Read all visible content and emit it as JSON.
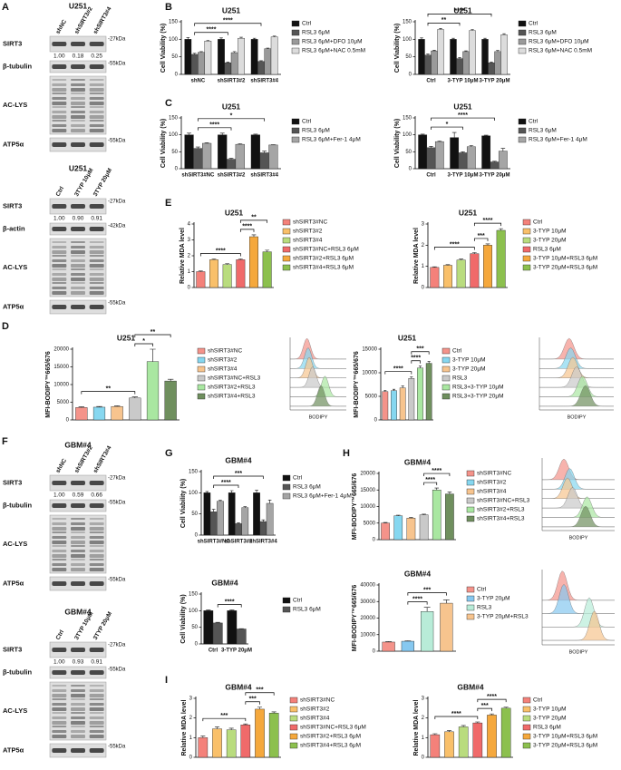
{
  "panel_labels": [
    "A",
    "B",
    "C",
    "D",
    "E",
    "F",
    "G",
    "H",
    "I"
  ],
  "blots": [
    {
      "title": "U251",
      "lanes": [
        "shNC",
        "shSIRT3#2",
        "shSIRT3#4"
      ],
      "rows": [
        {
          "protein": "SIRT3",
          "marker": "-27kDa",
          "quant": [
            "1.00",
            "0.18",
            "0.25"
          ]
        },
        {
          "protein": "β-tubulin",
          "marker": "-55kDa"
        },
        {
          "protein": "AC-LYS"
        },
        {
          "protein": "ATP5α",
          "marker": "-55kDa"
        }
      ]
    },
    {
      "title": "U251",
      "lanes": [
        "Ctrl",
        "3TYP 10μM",
        "3TYP 20μM"
      ],
      "rows": [
        {
          "protein": "SIRT3",
          "marker": "-27kDa",
          "quant": [
            "1.00",
            "0.90",
            "0.91"
          ]
        },
        {
          "protein": "β-actin",
          "marker": "-42kDa"
        },
        {
          "protein": "AC-LYS"
        },
        {
          "protein": "ATP5α",
          "marker": "-55kDa"
        }
      ]
    },
    {
      "title": "GBM#4",
      "lanes": [
        "shNC",
        "shSIRT3#2",
        "shSIRT3#4"
      ],
      "rows": [
        {
          "protein": "SIRT3",
          "marker": "-27kDa",
          "quant": [
            "1.00",
            "0.59",
            "0.66"
          ]
        },
        {
          "protein": "β-tubulin",
          "marker": "-55kDa"
        },
        {
          "protein": "AC-LYS"
        },
        {
          "protein": "ATP5α",
          "marker": "-55kDa"
        }
      ]
    },
    {
      "title": "GBM#4",
      "lanes": [
        "Ctrl",
        "3TYP 10μM",
        "3TYP 20μM"
      ],
      "rows": [
        {
          "protein": "SIRT3",
          "marker": "-27kDa",
          "quant": [
            "1.00",
            "0.93",
            "0.91"
          ]
        },
        {
          "protein": "β-tubulin",
          "marker": "-55kDa"
        },
        {
          "protein": "AC-LYS"
        },
        {
          "protein": "ATP5α",
          "marker": "-55kDa"
        }
      ]
    }
  ],
  "flow_histograms": [
    {
      "xlabel": "BODIPY"
    },
    {
      "xlabel": "BODIPY"
    },
    {
      "xlabel": "BODIPY"
    },
    {
      "xlabel": "BODIPY"
    }
  ],
  "chart_data": [
    {
      "type": "bar",
      "title": "U251",
      "ylabel": "Cell Viability (%)",
      "categories": [
        "shNC",
        "shSIRT3#2",
        "shSIRT3#4"
      ],
      "series": [
        {
          "name": "Ctrl",
          "color": "#111111",
          "values": [
            100,
            100,
            100
          ],
          "errors": [
            5,
            4,
            3
          ]
        },
        {
          "name": "RSL3 6μM",
          "color": "#555555",
          "values": [
            57,
            33,
            37
          ],
          "errors": [
            3,
            2,
            2
          ]
        },
        {
          "name": "RSL3 6μM+DFO 10μM",
          "color": "#9a9a9a",
          "values": [
            63,
            62,
            73
          ],
          "errors": [
            2,
            3,
            2
          ]
        },
        {
          "name": "RSL3 6μM+NAC 0.5mM",
          "color": "#dcdcdc",
          "values": [
            95,
            103,
            107
          ],
          "errors": [
            2,
            3,
            2
          ]
        }
      ],
      "ylim": [
        0,
        150
      ],
      "yticks": [
        0,
        50,
        100,
        150
      ],
      "significance": [
        {
          "label": "****",
          "bars": [
            1,
            5
          ]
        },
        {
          "label": "****",
          "bars": [
            1,
            9
          ]
        }
      ]
    },
    {
      "type": "bar",
      "title": "U251",
      "ylabel": "Cell Viability (%)",
      "categories": [
        "Ctrl",
        "3-TYP 10μM",
        "3-TYP 20μM"
      ],
      "series": [
        {
          "name": "Ctrl",
          "color": "#111111",
          "values": [
            100,
            100,
            100
          ],
          "errors": [
            4,
            3,
            3
          ]
        },
        {
          "name": "RSL3 6μM",
          "color": "#555555",
          "values": [
            55,
            45,
            33
          ],
          "errors": [
            3,
            3,
            2
          ]
        },
        {
          "name": "RSL3 6μM+DFO 10μM",
          "color": "#9a9a9a",
          "values": [
            67,
            65,
            65
          ],
          "errors": [
            2,
            2,
            3
          ]
        },
        {
          "name": "RSL3 6μM+NAC 0.5mM",
          "color": "#dcdcdc",
          "values": [
            128,
            125,
            113
          ],
          "errors": [
            3,
            3,
            3
          ]
        }
      ],
      "ylim": [
        0,
        150
      ],
      "yticks": [
        0,
        50,
        100,
        150
      ],
      "significance": [
        {
          "label": "**",
          "bars": [
            1,
            5
          ]
        },
        {
          "label": "****",
          "bars": [
            1,
            9
          ]
        }
      ]
    },
    {
      "type": "bar",
      "title": "U251",
      "ylabel": "Cell Viability (%)",
      "categories": [
        "shSIRT3#NC",
        "shSIRT3#2",
        "shSIRT3#4"
      ],
      "series": [
        {
          "name": "Ctrl",
          "color": "#111111",
          "values": [
            100,
            100,
            100
          ],
          "errors": [
            5,
            5,
            2
          ]
        },
        {
          "name": "RSL3 6μM",
          "color": "#555555",
          "values": [
            60,
            28,
            47
          ],
          "errors": [
            4,
            3,
            5
          ]
        },
        {
          "name": "RSL3 6μM+Fer-1 4μM",
          "color": "#a5a5a5",
          "values": [
            75,
            72,
            70
          ],
          "errors": [
            2,
            2,
            1
          ]
        }
      ],
      "ylim": [
        0,
        150
      ],
      "yticks": [
        0,
        50,
        100,
        150
      ],
      "significance": [
        {
          "label": "****",
          "bars": [
            1,
            4
          ]
        },
        {
          "label": "*",
          "bars": [
            1,
            7
          ]
        }
      ]
    },
    {
      "type": "bar",
      "title": "U251",
      "ylabel": "Cell Viability (%)",
      "categories": [
        "Ctrl",
        "3-TYP 10μM",
        "3-TYP 20μM"
      ],
      "series": [
        {
          "name": "Ctrl",
          "color": "#111111",
          "values": [
            100,
            92,
            97
          ],
          "errors": [
            2,
            15,
            2
          ]
        },
        {
          "name": "RSL3 6μM",
          "color": "#555555",
          "values": [
            62,
            47,
            20
          ],
          "errors": [
            4,
            3,
            2
          ]
        },
        {
          "name": "RSL3 6μM+Fer-1 4μM",
          "color": "#a5a5a5",
          "values": [
            80,
            65,
            52
          ],
          "errors": [
            2,
            4,
            8
          ]
        }
      ],
      "ylim": [
        0,
        150
      ],
      "yticks": [
        0,
        50,
        100,
        150
      ],
      "significance": [
        {
          "label": "*",
          "bars": [
            1,
            4
          ]
        },
        {
          "label": "****",
          "bars": [
            1,
            7
          ]
        }
      ]
    },
    {
      "type": "bar",
      "title": "U251",
      "ylabel": "Relative MDA level",
      "category_labels": "legend",
      "categories": [
        "shSIRT3#NC",
        "shSIRT3#2",
        "shSIRT3#4",
        "shSIRT3#NC+RSL3 6μM",
        "shSIRT3#2+RSL3 6μM",
        "shSIRT3#4+RSL3 6μM"
      ],
      "colors": [
        "#f4817a",
        "#f9c06a",
        "#b9dc7e",
        "#f06a6a",
        "#f5a83c",
        "#8cc04e"
      ],
      "values": [
        1.0,
        1.75,
        1.45,
        1.75,
        3.2,
        2.25
      ],
      "errors": [
        0.04,
        0.05,
        0.05,
        0.05,
        0.12,
        0.1
      ],
      "ylim": [
        0,
        4
      ],
      "yticks": [
        0,
        1,
        2,
        3,
        4
      ],
      "significance": [
        {
          "label": "****",
          "bars": [
            3,
            4
          ]
        },
        {
          "label": "**",
          "bars": [
            3,
            5
          ]
        },
        {
          "label": "****",
          "bars": [
            0,
            3
          ]
        }
      ]
    },
    {
      "type": "bar",
      "title": "U251",
      "ylabel": "Relative MDA level",
      "category_labels": "legend",
      "categories": [
        "Ctrl",
        "3-TYP 10μM",
        "3-TYP 20μM",
        "RSL3 6μM",
        "3-TYP 10μM+RSL3 6μM",
        "3-TYP 20μM+RSL3 6μM"
      ],
      "colors": [
        "#f4817a",
        "#f9c06a",
        "#b9dc7e",
        "#f06a6a",
        "#f5a83c",
        "#8cc04e"
      ],
      "values": [
        0.95,
        1.05,
        1.3,
        1.6,
        2.0,
        2.7
      ],
      "errors": [
        0.03,
        0.03,
        0.04,
        0.05,
        0.06,
        0.08
      ],
      "ylim": [
        0,
        3
      ],
      "yticks": [
        0,
        1,
        2,
        3
      ],
      "significance": [
        {
          "label": "***",
          "bars": [
            3,
            4
          ]
        },
        {
          "label": "****",
          "bars": [
            3,
            5
          ]
        },
        {
          "label": "****",
          "bars": [
            0,
            3
          ]
        }
      ]
    },
    {
      "type": "bar",
      "title": "U251",
      "ylabel": "MFI-BODIPY™665/676",
      "category_labels": "legend",
      "categories": [
        "shSIRT3#NC",
        "shSIRT3#2",
        "shSIRT3#4",
        "shSIRT3#NC+RSL3",
        "shSIRT3#2+RSL3",
        "shSIRT3#4+RSL3"
      ],
      "colors": [
        "#f4938a",
        "#86d7f0",
        "#f7c48e",
        "#c9c9c9",
        "#a9e7a1",
        "#6f8f5e"
      ],
      "values": [
        3500,
        3600,
        3800,
        6200,
        16500,
        11000
      ],
      "errors": [
        200,
        200,
        200,
        300,
        3500,
        500
      ],
      "ylim": [
        0,
        20000
      ],
      "yticks": [
        0,
        5000,
        10000,
        15000,
        20000
      ],
      "significance": [
        {
          "label": "**",
          "bars": [
            0,
            3
          ]
        },
        {
          "label": "*",
          "bars": [
            3,
            4
          ]
        },
        {
          "label": "**",
          "bars": [
            3,
            5
          ]
        }
      ]
    },
    {
      "type": "bar",
      "title": "U251",
      "ylabel": "MFI-BODIPY™665/676",
      "category_labels": "legend",
      "categories": [
        "Ctrl",
        "3-TYP 10μM",
        "3-TYP 20μM",
        "RSL3",
        "RSL3+3-TYP 10μM",
        "RSL3+3-TYP 20μM"
      ],
      "colors": [
        "#f4938a",
        "#86d7f0",
        "#f7c48e",
        "#c9c9c9",
        "#a9e7a1",
        "#6f8f5e"
      ],
      "values": [
        6000,
        6200,
        6800,
        8800,
        11000,
        12000
      ],
      "errors": [
        300,
        300,
        400,
        300,
        400,
        400
      ],
      "ylim": [
        0,
        15000
      ],
      "yticks": [
        0,
        5000,
        10000,
        15000
      ],
      "significance": [
        {
          "label": "****",
          "bars": [
            0,
            3
          ]
        },
        {
          "label": "****",
          "bars": [
            3,
            4
          ]
        },
        {
          "label": "***",
          "bars": [
            3,
            5
          ]
        }
      ]
    },
    {
      "type": "bar",
      "title": "GBM#4",
      "ylabel": "Cell Viability (%)",
      "categories": [
        "shSIRT3#NC",
        "shSIRT3#2",
        "shSIRT3#4"
      ],
      "series": [
        {
          "name": "Ctrl",
          "color": "#111111",
          "values": [
            100,
            100,
            100
          ],
          "errors": [
            3,
            5,
            6
          ]
        },
        {
          "name": "RSL3 6μM",
          "color": "#555555",
          "values": [
            55,
            27,
            32
          ],
          "errors": [
            6,
            2,
            4
          ]
        },
        {
          "name": "RSL3 6μM+Fer-1 4μM",
          "color": "#a5a5a5",
          "values": [
            80,
            65,
            75
          ],
          "errors": [
            2,
            2,
            8
          ]
        }
      ],
      "ylim": [
        0,
        150
      ],
      "yticks": [
        0,
        50,
        100,
        150
      ],
      "significance": [
        {
          "label": "****",
          "bars": [
            1,
            4
          ]
        },
        {
          "label": "***",
          "bars": [
            1,
            7
          ]
        }
      ]
    },
    {
      "type": "bar",
      "title": "GBM#4",
      "ylabel": "Cell Viability (%)",
      "categories": [
        "Ctrl",
        "3-TYP 20μM"
      ],
      "series": [
        {
          "name": "Ctrl",
          "color": "#111111",
          "values": [
            100,
            100
          ],
          "errors": [
            2,
            2
          ]
        },
        {
          "name": "RSL3 6μM",
          "color": "#555555",
          "values": [
            63,
            45
          ],
          "errors": [
            2,
            1
          ]
        }
      ],
      "ylim": [
        0,
        150
      ],
      "yticks": [
        0,
        50,
        100,
        150
      ],
      "significance": [
        {
          "label": "****",
          "bars": [
            1,
            3
          ]
        }
      ]
    },
    {
      "type": "bar",
      "title": "GBM#4",
      "ylabel": "MFI-BODIPY™665/676",
      "category_labels": "legend",
      "categories": [
        "shSIRT3#NC",
        "shSIRT3#2",
        "shSIRT3#4",
        "shSIRT3#NC+RSL3",
        "shSIRT3#2+RSL3",
        "shSIRT3#4+RSL3"
      ],
      "colors": [
        "#f4938a",
        "#86d7f0",
        "#f7c48e",
        "#c9c9c9",
        "#a9e7a1",
        "#6f8f5e"
      ],
      "values": [
        5000,
        7200,
        6500,
        7500,
        15000,
        13800
      ],
      "errors": [
        200,
        200,
        200,
        200,
        600,
        600
      ],
      "ylim": [
        0,
        20000
      ],
      "yticks": [
        0,
        5000,
        10000,
        15000,
        20000
      ],
      "significance": [
        {
          "label": "****",
          "bars": [
            3,
            4
          ]
        },
        {
          "label": "****",
          "bars": [
            3,
            5
          ]
        }
      ]
    },
    {
      "type": "bar",
      "title": "GBM#4",
      "ylabel": "MFI-BODIPY™665/676",
      "category_labels": "legend",
      "categories": [
        "Ctrl",
        "3-TYP 20μM",
        "RSL3",
        "3-TYP 20μM+RSL3"
      ],
      "colors": [
        "#f4938a",
        "#86c8f0",
        "#b8ecd8",
        "#f7c48e"
      ],
      "values": [
        5500,
        6000,
        24000,
        29000
      ],
      "errors": [
        300,
        300,
        2500,
        2000
      ],
      "ylim": [
        0,
        40000
      ],
      "yticks": [
        0,
        10000,
        20000,
        30000,
        40000
      ],
      "significance": [
        {
          "label": "****",
          "bars": [
            1,
            2
          ]
        },
        {
          "label": "***",
          "bars": [
            1,
            3
          ]
        }
      ]
    },
    {
      "type": "bar",
      "title": "GBM#4",
      "ylabel": "Relative MDA level",
      "category_labels": "legend",
      "categories": [
        "shSIRT3#NC",
        "shSIRT3#2",
        "shSIRT3#4",
        "shSIRT3#NC+RSL3 6μM",
        "shSIRT3#2+RSL3 6μM",
        "shSIRT3#4+RSL3 6μM"
      ],
      "colors": [
        "#f4817a",
        "#f9c06a",
        "#b9dc7e",
        "#f06a6a",
        "#f5a83c",
        "#8cc04e"
      ],
      "values": [
        1.0,
        1.45,
        1.4,
        1.65,
        2.45,
        2.25
      ],
      "errors": [
        0.08,
        0.1,
        0.08,
        0.05,
        0.1,
        0.06
      ],
      "ylim": [
        0,
        3
      ],
      "yticks": [
        0,
        1,
        2,
        3
      ],
      "significance": [
        {
          "label": "***",
          "bars": [
            3,
            4
          ]
        },
        {
          "label": "***",
          "bars": [
            3,
            5
          ]
        },
        {
          "label": "***",
          "bars": [
            0,
            3
          ]
        }
      ]
    },
    {
      "type": "bar",
      "title": "GBM#4",
      "ylabel": "Relative MDA level",
      "category_labels": "legend",
      "categories": [
        "Ctrl",
        "3-TYP 10μM",
        "3-TYP 20μM",
        "RSL3 6μM",
        "3-TYP 10μM+RSL3 6μM",
        "3-TYP 20μM+RSL3 6μM"
      ],
      "colors": [
        "#f4817a",
        "#f9c06a",
        "#b9dc7e",
        "#f06a6a",
        "#f5a83c",
        "#8cc04e"
      ],
      "values": [
        1.15,
        1.3,
        1.55,
        1.75,
        2.15,
        2.5
      ],
      "errors": [
        0.05,
        0.06,
        0.07,
        0.05,
        0.06,
        0.05
      ],
      "ylim": [
        0,
        3
      ],
      "yticks": [
        0,
        1,
        2,
        3
      ],
      "significance": [
        {
          "label": "***",
          "bars": [
            3,
            4
          ]
        },
        {
          "label": "****",
          "bars": [
            3,
            5
          ]
        },
        {
          "label": "****",
          "bars": [
            0,
            3
          ]
        }
      ]
    }
  ]
}
